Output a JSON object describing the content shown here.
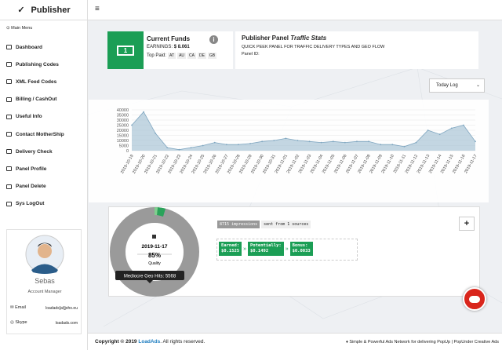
{
  "brand": "Publisher",
  "sidebar": {
    "header": "Main Menu",
    "items": [
      "Dashboard",
      "Publishing Codes",
      "XML Feed Codes",
      "Billing / CashOut",
      "Useful Info",
      "Contact MotherShip",
      "Delivery Check",
      "Panel Profile",
      "Panel Delete",
      "Sys LogOut"
    ],
    "profile": {
      "name": "Sebas",
      "role": "Account Manager",
      "email_label": "Email",
      "email": "loadads[at]joho.eu",
      "skype_label": "Skype",
      "skype": "loadads.com"
    }
  },
  "funds": {
    "title": "Current Funds",
    "earnings_label": "EARNINGS:",
    "earnings": "$ 8.061",
    "top_paid_label": "Top Paid:",
    "top_paid": [
      "AT",
      "AU",
      "CA",
      "DE",
      "GB"
    ]
  },
  "panel": {
    "title": "Publisher Panel",
    "title_italic": "Traffic Stats",
    "subtitle": "QUICK PEEK PANEL FOR TRAFFIC DELIVERY TYPES AND GEO FLOW",
    "id_label": "Panel ID:"
  },
  "dropdown": "Today Log",
  "chart_data": {
    "type": "area",
    "color": "#a9c4d6",
    "categories": [
      "2019-10-19",
      "2019-10-20",
      "2019-10-21",
      "2019-10-22",
      "2019-10-23",
      "2019-10-24",
      "2019-10-25",
      "2019-10-26",
      "2019-10-27",
      "2019-10-28",
      "2019-10-29",
      "2019-10-30",
      "2019-10-31",
      "2019-11-01",
      "2019-11-02",
      "2019-11-03",
      "2019-11-04",
      "2019-11-05",
      "2019-11-06",
      "2019-11-07",
      "2019-11-08",
      "2019-11-09",
      "2019-11-10",
      "2019-11-11",
      "2019-11-12",
      "2019-11-13",
      "2019-11-14",
      "2019-11-15",
      "2019-11-16",
      "2019-11-17"
    ],
    "values": [
      25000,
      38000,
      17000,
      3000,
      1000,
      3000,
      5000,
      8000,
      6000,
      6000,
      7000,
      9000,
      10000,
      12000,
      10000,
      9000,
      8000,
      9000,
      8000,
      9000,
      9000,
      6000,
      6000,
      4000,
      8000,
      20000,
      16000,
      22000,
      25000,
      9000
    ],
    "ylim": [
      0,
      40000
    ],
    "yticks": [
      0,
      5000,
      10000,
      15000,
      20000,
      25000,
      30000,
      35000,
      40000
    ],
    "grid": true
  },
  "stats": {
    "date": "2019-11-17",
    "quality_value": "85%",
    "quality_label": "Quality",
    "tooltip": "Mediocre Geo Hits: 5568",
    "impressions": "8715 impressions",
    "sources": "sent from 1 sources",
    "plus": "+",
    "earned_label": "Earned:",
    "earned": "$0.1525",
    "potentially_label": "Potentially:",
    "potentially": "$0.1492",
    "bonus_label": "Bonus:",
    "bonus": "$0.0033"
  },
  "footer": {
    "copyright": "Copyright © 2019",
    "brand": "LoadAds",
    "rights": ". All rights reserved.",
    "tagline": "Simple & Powerful Ads Network for delivering PopUp | PopUnder Creative Ads"
  }
}
